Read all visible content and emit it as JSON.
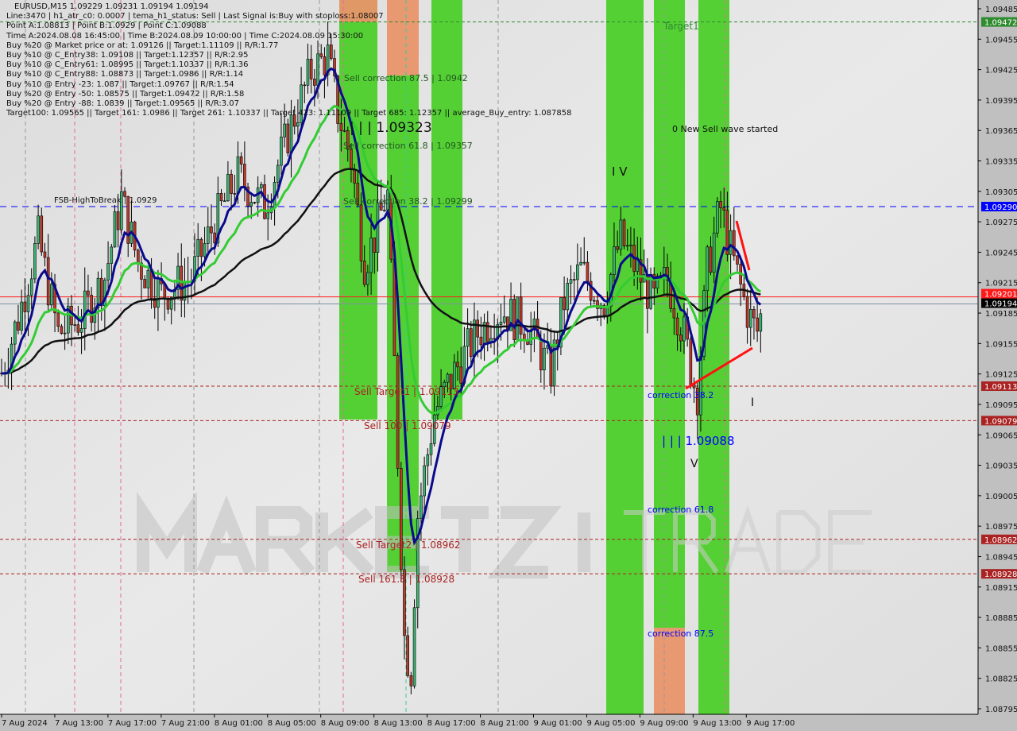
{
  "header": {
    "title": "EURUSD,M15  1.09229 1.09231 1.09194 1.09194",
    "lines": [
      "Line:3470 | h1_atr_c0: 0.0007 | tema_h1_status: Sell | Last Signal is:Buy with stoploss:1.08007",
      "Point A:1.08813 | Point B:1.0929 | Point C:1.09088",
      "Time A:2024.08.08 16:45:00 | Time B:2024.08.09 10:00:00 | Time C:2024.08.09 15:30:00",
      "Buy %20 @ Market price or at: 1.09126 || Target:1.11109 || R/R:1.77",
      "Buy %10 @ C_Entry38: 1.09108 || Target:1.12357 || R/R:2.95",
      "Buy %10 @ C_Entry61: 1.08995 || Target:1.10337 || R/R:1.36",
      "Buy %10 @ C_Entry88: 1.08873 || Target:1.0986 || R/R:1.14",
      "Buy %10 @ Entry -23: 1.087 || Target:1.09767 || R/R:1.54",
      "Buy %20 @ Entry -50: 1.08575 || Target:1.09472 || R/R:1.58",
      "Buy %20 @ Entry -88: 1.0839 || Target:1.09565 || R/R:3.07",
      "Target100: 1.09565 || Target 161: 1.0986 || Target 261: 1.10337 || Target 423: 1.11109 || Target 685: 1.12357 || average_Buy_entry: 1.087858"
    ]
  },
  "watermark": "MARKETZITRADE",
  "annotations": {
    "sell_corr_875": "Sell correction 87.5 | 1.0942",
    "sell_corr_618": "Sell correction 61.8 | 1.09357",
    "sell_corr_382": "Sell correction 38.2 | 1.09299",
    "wave_b": "| | | 1.09323",
    "fsb": "FSB-HighToBreak | 1.0929",
    "sell_target1": "Sell Target1 | 1.09113",
    "sell_100": "Sell 100 | 1.09079",
    "sell_target2": "Sell Target2 | 1.08962",
    "sell_1618": "Sell 161.8 | 1.08928",
    "target1": "Target1",
    "new_wave": "0 New Sell wave started",
    "wave_iv": "I V",
    "wave_c": "| | | 1.09088",
    "wave_v": "V",
    "wave_i": "I",
    "corr_382": "correction 38.2",
    "corr_618": "correction 61.8",
    "corr_875": "correction 87.5"
  },
  "colors": {
    "background": "#e6e6e6",
    "zone_green": "#4ccf2a",
    "zone_orange": "#e8956a",
    "bull_candle": "#3cb371",
    "bear_candle": "#c0392b",
    "ma_fast": "#0a0a8c",
    "ma_mid": "#33cc33",
    "ma_slow": "#111111",
    "target_line": "#aa2222",
    "blue_line": "#0000ff",
    "green_line": "#228822"
  },
  "chart_data": {
    "type": "candlestick",
    "symbol": "EURUSD",
    "timeframe": "M15",
    "ylim": [
      1.0878,
      1.0949
    ],
    "y_ticks": [
      "1.09485",
      "1.09455",
      "1.09425",
      "1.09395",
      "1.09365",
      "1.09335",
      "1.09305",
      "1.09275",
      "1.09245",
      "1.09215",
      "1.09185",
      "1.09155",
      "1.09125",
      "1.09095",
      "1.09065",
      "1.09035",
      "1.09005",
      "1.08975",
      "1.08945",
      "1.08915",
      "1.08885",
      "1.08855",
      "1.08825",
      "1.08795"
    ],
    "x_ticks": [
      "7 Aug 2024",
      "7 Aug 13:00",
      "7 Aug 17:00",
      "7 Aug 21:00",
      "8 Aug 01:00",
      "8 Aug 05:00",
      "8 Aug 09:00",
      "8 Aug 13:00",
      "8 Aug 17:00",
      "8 Aug 21:00",
      "9 Aug 01:00",
      "9 Aug 05:00",
      "9 Aug 09:00",
      "9 Aug 13:00",
      "9 Aug 17:00"
    ],
    "price_labels": [
      {
        "value": "1.09472",
        "color": "#2e8b2e"
      },
      {
        "value": "1.09290",
        "color": "#0000ff"
      },
      {
        "value": "1.09201",
        "color": "#ff1a1a"
      },
      {
        "value": "1.09194",
        "color": "#000000"
      },
      {
        "value": "1.09113",
        "color": "#aa2222"
      },
      {
        "value": "1.09079",
        "color": "#aa2222"
      },
      {
        "value": "1.08962",
        "color": "#aa2222"
      },
      {
        "value": "1.08928",
        "color": "#aa2222"
      }
    ],
    "approx_price_path": [
      [
        "7 Aug 09:00",
        1.09126
      ],
      [
        "7 Aug 10:15",
        1.0918
      ],
      [
        "7 Aug 11:45",
        1.09259
      ],
      [
        "7 Aug 13:15",
        1.09165
      ],
      [
        "7 Aug 15:00",
        1.0918
      ],
      [
        "7 Aug 16:45",
        1.0922
      ],
      [
        "7 Aug 18:00",
        1.09298
      ],
      [
        "7 Aug 19:15",
        1.09235
      ],
      [
        "7 Aug 21:00",
        1.09204
      ],
      [
        "7 Aug 23:15",
        1.0922
      ],
      [
        "8 Aug 01:00",
        1.09274
      ],
      [
        "8 Aug 02:45",
        1.09321
      ],
      [
        "8 Aug 04:45",
        1.0929
      ],
      [
        "8 Aug 06:30",
        1.09361
      ],
      [
        "8 Aug 08:15",
        1.09423
      ],
      [
        "8 Aug 09:30",
        1.09439
      ],
      [
        "8 Aug 10:15",
        1.09384
      ],
      [
        "8 Aug 11:15",
        1.09337
      ],
      [
        "8 Aug 12:15",
        1.09235
      ],
      [
        "8 Aug 13:00",
        1.09259
      ],
      [
        "8 Aug 14:00",
        1.09306
      ],
      [
        "8 Aug 14:30",
        1.09141
      ],
      [
        "8 Aug 15:15",
        1.08867
      ],
      [
        "8 Aug 15:45",
        1.08828
      ],
      [
        "8 Aug 16:15",
        1.08985
      ],
      [
        "8 Aug 17:30",
        1.09086
      ],
      [
        "8 Aug 19:00",
        1.09126
      ],
      [
        "8 Aug 20:45",
        1.09165
      ],
      [
        "8 Aug 22:30",
        1.09188
      ],
      [
        "9 Aug 00:30",
        1.09173
      ],
      [
        "9 Aug 02:15",
        1.09126
      ],
      [
        "9 Aug 03:15",
        1.09196
      ],
      [
        "9 Aug 04:30",
        1.09227
      ],
      [
        "9 Aug 06:15",
        1.09196
      ],
      [
        "9 Aug 07:30",
        1.09259
      ],
      [
        "9 Aug 08:45",
        1.09227
      ],
      [
        "9 Aug 10:00",
        1.09196
      ],
      [
        "9 Aug 11:00",
        1.0922
      ],
      [
        "9 Aug 12:15",
        1.09165
      ],
      [
        "9 Aug 13:15",
        1.09102
      ],
      [
        "9 Aug 14:00",
        1.09227
      ],
      [
        "9 Aug 15:00",
        1.0929
      ],
      [
        "9 Aug 16:00",
        1.09235
      ],
      [
        "9 Aug 17:00",
        1.09188
      ],
      [
        "9 Aug 17:45",
        1.09165
      ],
      [
        "9 Aug 18:15",
        1.09194
      ]
    ]
  }
}
